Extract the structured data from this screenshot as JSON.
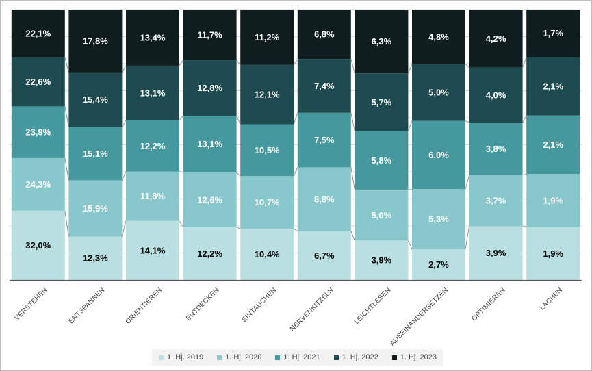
{
  "chart_data": {
    "type": "bar",
    "stacked": true,
    "normalized_100": true,
    "categories": [
      "VERSTEHEN",
      "ENTSPANNEN",
      "ORIENTIEREN",
      "ENTDECKEN",
      "EINTAUCHEN",
      "NERVENKITZELN",
      "LEICHTLESEN",
      "AUSEINANDERSETZEN",
      "OPTIMIEREN",
      "LACHEN"
    ],
    "series": [
      {
        "name": "1. Hj. 2019",
        "color": "#b9dfe1",
        "label_color": "#000000",
        "values": [
          32.0,
          12.3,
          14.1,
          12.2,
          10.4,
          6.7,
          3.9,
          2.7,
          3.9,
          1.9
        ],
        "labels": [
          "32,0%",
          "12,3%",
          "14,1%",
          "12,2%",
          "10,4%",
          "6,7%",
          "3,9%",
          "2,7%",
          "3,9%",
          "1,9%"
        ]
      },
      {
        "name": "1. Hj. 2020",
        "color": "#88c7cc",
        "label_color": "#ffffff",
        "values": [
          24.3,
          15.9,
          11.8,
          12.6,
          10.7,
          8.8,
          5.0,
          5.3,
          3.7,
          1.9
        ],
        "labels": [
          "24,3%",
          "15,9%",
          "11,8%",
          "12,6%",
          "10,7%",
          "8,8%",
          "5,0%",
          "5,3%",
          "3,7%",
          "1,9%"
        ]
      },
      {
        "name": "1. Hj. 2021",
        "color": "#45999e",
        "label_color": "#ffffff",
        "values": [
          23.9,
          15.1,
          12.2,
          13.1,
          10.5,
          7.5,
          5.8,
          6.0,
          3.8,
          2.1
        ],
        "labels": [
          "23,9%",
          "15,1%",
          "12,2%",
          "13,1%",
          "10,5%",
          "7,5%",
          "5,8%",
          "6,0%",
          "3,8%",
          "2,1%"
        ]
      },
      {
        "name": "1. Hj. 2022",
        "color": "#1e4b4f",
        "label_color": "#ffffff",
        "values": [
          22.6,
          15.4,
          13.1,
          12.8,
          12.1,
          7.4,
          5.7,
          5.0,
          4.0,
          2.1
        ],
        "labels": [
          "22,6%",
          "15,4%",
          "13,1%",
          "12,8%",
          "12,1%",
          "7,4%",
          "5,7%",
          "5,0%",
          "4,0%",
          "2,1%"
        ]
      },
      {
        "name": "1. Hj. 2023",
        "color": "#0f1d1e",
        "label_color": "#ffffff",
        "values": [
          22.1,
          17.8,
          13.4,
          11.7,
          11.2,
          6.8,
          6.3,
          4.8,
          4.2,
          1.7
        ],
        "labels": [
          "22,1%",
          "17,8%",
          "13,4%",
          "11,7%",
          "11,2%",
          "6,8%",
          "6,3%",
          "4,8%",
          "4,2%",
          "1,7%"
        ]
      }
    ],
    "gridlines": true,
    "series_lines": true,
    "legend_position": "bottom",
    "y_axis_visible": false
  }
}
